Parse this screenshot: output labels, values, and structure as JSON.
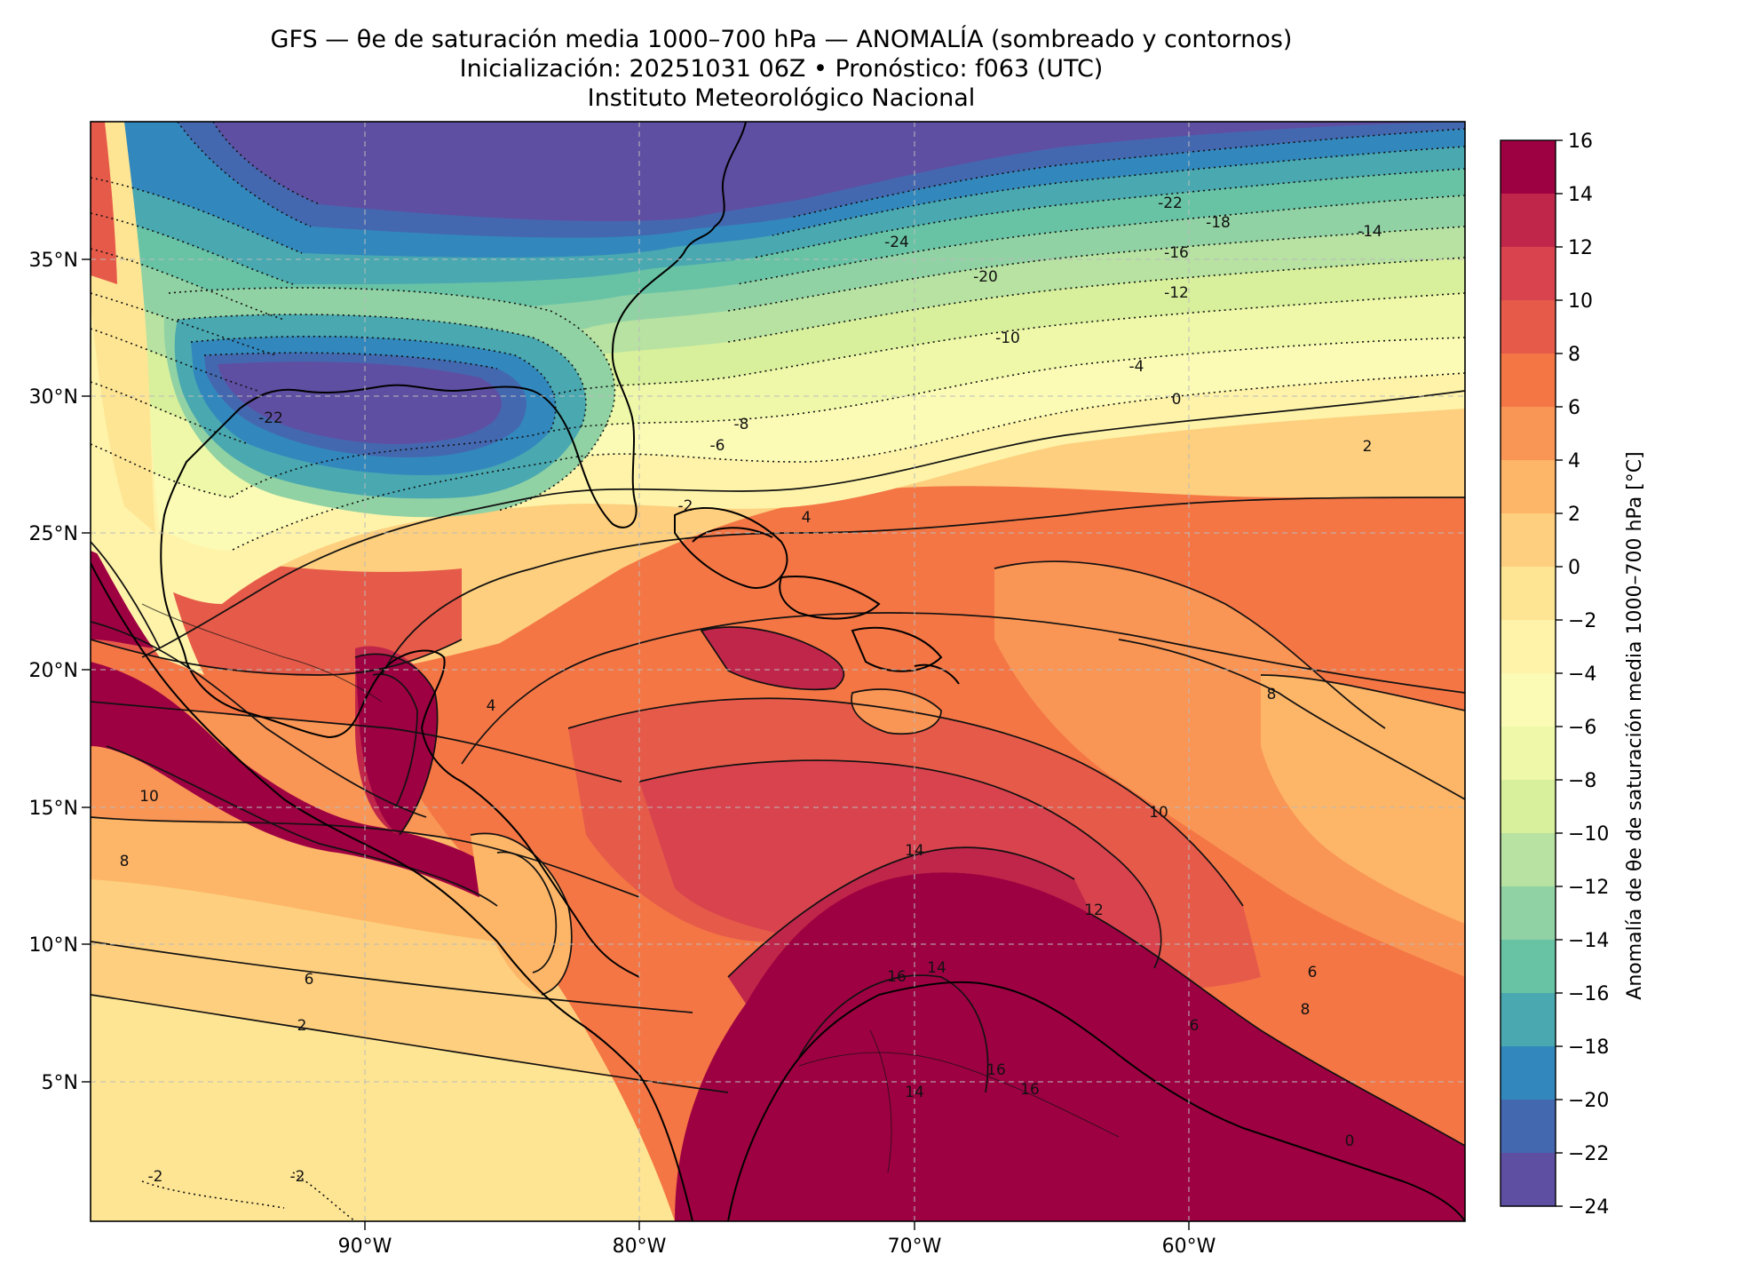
{
  "title": {
    "line1": "GFS — θe de saturación media 1000–700 hPa — ANOMALÍA (sombreado y contornos)",
    "line2": "Inicialización: 20251031 06Z   •   Pronóstico: f063 (UTC)",
    "line3": "Instituto Meteorológico Nacional"
  },
  "map": {
    "lat_ticks": [
      "35°N",
      "30°N",
      "25°N",
      "20°N",
      "15°N",
      "10°N",
      "5°N"
    ],
    "lon_ticks": [
      "90°W",
      "80°W",
      "70°W",
      "60°W"
    ]
  },
  "colorbar": {
    "label": "Anomalía de θe de saturación media 1000–700 hPa [°C]",
    "levels": [
      16,
      14,
      12,
      10,
      8,
      6,
      4,
      2,
      0,
      -2,
      -4,
      -6,
      -8,
      -10,
      -12,
      -14,
      -16,
      -18,
      -20,
      -22,
      -24
    ],
    "tick_labels": [
      "16",
      "14",
      "12",
      "10",
      "8",
      "6",
      "4",
      "2",
      "0",
      "−2",
      "−4",
      "−6",
      "−8",
      "−10",
      "−12",
      "−14",
      "−16",
      "−18",
      "−20",
      "−22",
      "−24"
    ],
    "colors": [
      "#9e0142",
      "#c0264a",
      "#d8434e",
      "#e65a49",
      "#f47645",
      "#f99555",
      "#fdb567",
      "#fdcf7e",
      "#fee593",
      "#fef3a9",
      "#fbfbb6",
      "#eef8a8",
      "#d8ef9b",
      "#b7e2a1",
      "#91d2a4",
      "#68c3a5",
      "#49a8b0",
      "#3288bd",
      "#4468b0",
      "#5e4fa2"
    ]
  },
  "contour_labels": [
    "-24",
    "-22",
    "-22",
    "-20",
    "-18",
    "-16",
    "-14",
    "-12",
    "-10",
    "-8",
    "-6",
    "-4",
    "-2",
    "0",
    "0",
    "2",
    "2",
    "4",
    "4",
    "6",
    "6",
    "8",
    "8",
    "10",
    "10",
    "12",
    "14",
    "16",
    "-2",
    "-2",
    "8",
    "6",
    "16",
    "14",
    "14",
    "16"
  ]
}
